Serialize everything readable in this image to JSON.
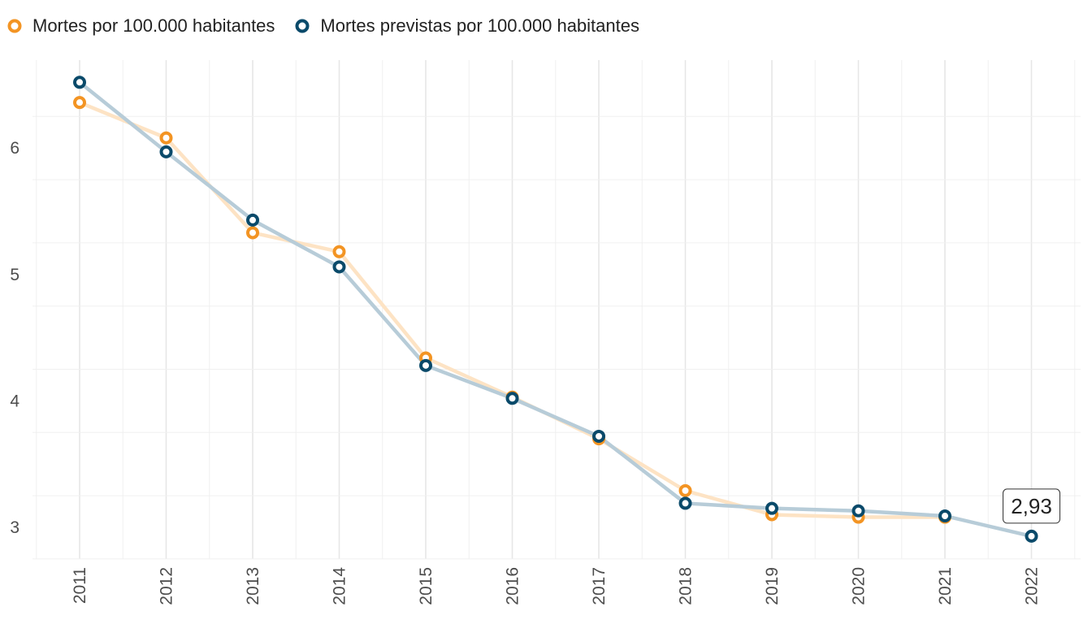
{
  "chart_data": {
    "type": "line",
    "title": "",
    "xlabel": "",
    "ylabel": "",
    "x": [
      "2011",
      "2012",
      "2013",
      "2014",
      "2015",
      "2016",
      "2017",
      "2018",
      "2019",
      "2020",
      "2021",
      "2022"
    ],
    "ylim": [
      2.75,
      6.5
    ],
    "yticks": [
      3,
      4,
      5,
      6
    ],
    "ytick_labels": [
      "3",
      "4",
      "5",
      "6"
    ],
    "grid": true,
    "legend_position": "top-left",
    "series": [
      {
        "name": "Mortes por 100.000 habitantes",
        "color": "#F39423",
        "line_color": "#FDE3C4",
        "values": [
          6.36,
          6.08,
          5.33,
          5.18,
          4.34,
          4.03,
          3.7,
          3.29,
          3.1,
          3.08,
          3.08,
          null
        ]
      },
      {
        "name": "Mortes previstas por 100.000 habitantes",
        "color": "#0A4A6A",
        "line_color": "#B7CCD8",
        "values": [
          6.52,
          5.97,
          5.43,
          5.06,
          4.28,
          4.02,
          3.72,
          3.19,
          3.15,
          3.13,
          3.09,
          2.93
        ]
      }
    ],
    "annotations": [
      {
        "x": "2022",
        "y": 2.93,
        "text": "2,93"
      }
    ]
  }
}
